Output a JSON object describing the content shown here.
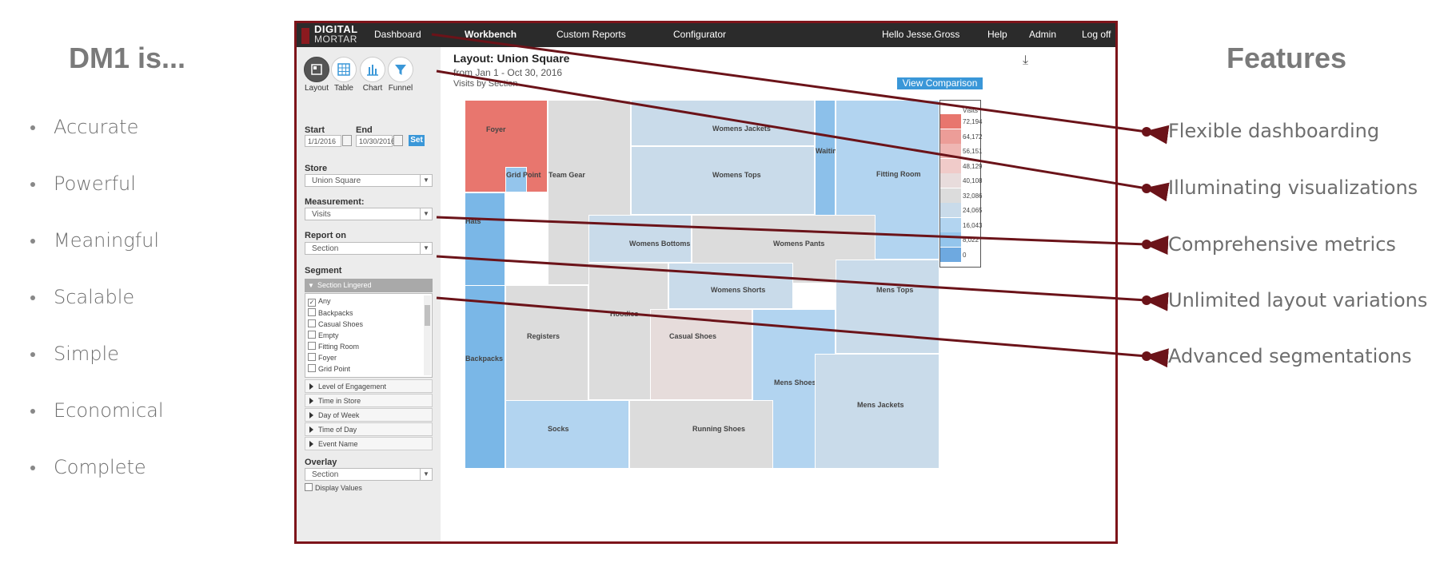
{
  "slide": {
    "left_title": "DM1 is...",
    "left_items": [
      "Accurate",
      "Powerful",
      "Meaningful",
      "Scalable",
      "Simple",
      "Economical",
      "Complete"
    ],
    "right_title": "Features",
    "features": [
      "Flexible dashboarding",
      "Illuminating visualizations",
      "Comprehensive metrics",
      "Unlimited layout variations",
      "Advanced segmentations"
    ],
    "arrow_color": "#6b1319"
  },
  "app": {
    "logo": {
      "line1": "DIGITAL",
      "line2": "MORTAR"
    },
    "nav": {
      "dashboard": "Dashboard",
      "workbench": "Workbench",
      "custom_reports": "Custom Reports",
      "configurator": "Configurator",
      "greeting": "Hello Jesse.Gross",
      "help": "Help",
      "admin": "Admin",
      "logoff": "Log off"
    },
    "views": [
      {
        "label": "Layout",
        "icon": "layout-icon"
      },
      {
        "label": "Table",
        "icon": "table-icon"
      },
      {
        "label": "Chart",
        "icon": "chart-icon"
      },
      {
        "label": "Funnel",
        "icon": "funnel-icon"
      }
    ],
    "dates": {
      "start_label": "Start",
      "end_label": "End",
      "start_value": "1/1/2016",
      "end_value": "10/30/2016",
      "set_label": "Set"
    },
    "store": {
      "label": "Store",
      "value": "Union Square"
    },
    "measurement": {
      "label": "Measurement:",
      "value": "Visits"
    },
    "report_on": {
      "label": "Report on",
      "value": "Section"
    },
    "segment": {
      "label": "Segment",
      "open_group": "Section Lingered",
      "items": [
        {
          "label": "Any",
          "checked": true
        },
        {
          "label": "Backpacks",
          "checked": false
        },
        {
          "label": "Casual Shoes",
          "checked": false
        },
        {
          "label": "Empty",
          "checked": false
        },
        {
          "label": "Fitting Room",
          "checked": false
        },
        {
          "label": "Foyer",
          "checked": false
        },
        {
          "label": "Grid Point",
          "checked": false
        }
      ],
      "groups": [
        "Level of Engagement",
        "Time in Store",
        "Day of Week",
        "Time of Day",
        "Event Name"
      ]
    },
    "overlay": {
      "label": "Overlay",
      "value": "Section",
      "display_values": "Display Values"
    },
    "main": {
      "title": "Layout: Union Square",
      "range": "from Jan 1 - Oct 30, 2016",
      "metric": "Visits by Section",
      "compare_button": "View Comparison"
    },
    "legend": {
      "title": "Visits",
      "values": [
        "72,194",
        "64,172",
        "56,151",
        "48,129",
        "40,108",
        "32,086",
        "24,065",
        "16,043",
        "8,022",
        "0"
      ],
      "colors": [
        "#e8766e",
        "#ec9d98",
        "#efb6b3",
        "#f0cbc9",
        "#e8dcdc",
        "#dcdcdc",
        "#c9dbea",
        "#b2d4f0",
        "#94c5ec",
        "#6ea9e0"
      ]
    },
    "sections": {
      "foyer": "Foyer",
      "grid_point": "Grid Point",
      "team_gear": "Team Gear",
      "womens_jackets": "Womens Jackets",
      "womens_tops": "Womens Tops",
      "waiting_area": "Waiting Area",
      "fitting_room": "Fitting Room",
      "hats": "Hats",
      "womens_bottoms": "Womens Bottoms",
      "womens_pants": "Womens Pants",
      "womens_shorts": "Womens Shorts",
      "mens_tops": "Mens Tops",
      "registers": "Registers",
      "hoodies": "Hoodies",
      "casual_shoes": "Casual Shoes",
      "backpacks": "Backpacks",
      "mens_shoes": "Mens Shoes",
      "mens_jackets": "Mens Jackets",
      "socks": "Socks",
      "running_shoes": "Running Shoes"
    }
  }
}
